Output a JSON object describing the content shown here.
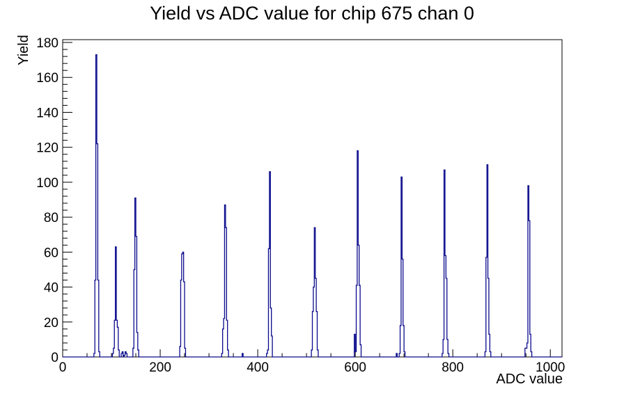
{
  "title": "Yield vs ADC value for chip 675 chan 0",
  "chart_data": {
    "type": "bar",
    "title": "Yield vs ADC value for chip 675 chan 0",
    "xlabel": "ADC value",
    "ylabel": "Yield",
    "xlim": [
      0,
      1024
    ],
    "ylim": [
      0,
      181.6
    ],
    "x_major_ticks": [
      0,
      200,
      400,
      600,
      800,
      1000
    ],
    "x_minor_step": 50,
    "y_major_ticks": [
      0,
      20,
      40,
      60,
      80,
      100,
      120,
      140,
      160,
      180
    ],
    "y_minor_step": 4,
    "bin_width": 2,
    "line_color": "#0a0a8c",
    "frame_color": "#000000",
    "background": "#ffffff",
    "grid": false,
    "legend": "none",
    "bins": [
      [
        64,
        2
      ],
      [
        66,
        44
      ],
      [
        68,
        173
      ],
      [
        70,
        122
      ],
      [
        72,
        44
      ],
      [
        74,
        3
      ],
      [
        102,
        2
      ],
      [
        104,
        5
      ],
      [
        106,
        21
      ],
      [
        108,
        63
      ],
      [
        110,
        21
      ],
      [
        112,
        17
      ],
      [
        114,
        4
      ],
      [
        120,
        2
      ],
      [
        122,
        3
      ],
      [
        126,
        1
      ],
      [
        128,
        3
      ],
      [
        130,
        2
      ],
      [
        144,
        5
      ],
      [
        146,
        50
      ],
      [
        148,
        91
      ],
      [
        150,
        69
      ],
      [
        152,
        14
      ],
      [
        154,
        4
      ],
      [
        240,
        6
      ],
      [
        242,
        44
      ],
      [
        244,
        59
      ],
      [
        246,
        60
      ],
      [
        248,
        43
      ],
      [
        250,
        5
      ],
      [
        326,
        2
      ],
      [
        328,
        16
      ],
      [
        330,
        22
      ],
      [
        332,
        87
      ],
      [
        334,
        74
      ],
      [
        336,
        21
      ],
      [
        338,
        4
      ],
      [
        368,
        2
      ],
      [
        418,
        2
      ],
      [
        420,
        4
      ],
      [
        422,
        62
      ],
      [
        424,
        106
      ],
      [
        426,
        28
      ],
      [
        428,
        12
      ],
      [
        510,
        4
      ],
      [
        512,
        26
      ],
      [
        514,
        40
      ],
      [
        516,
        74
      ],
      [
        518,
        45
      ],
      [
        520,
        26
      ],
      [
        522,
        4
      ],
      [
        598,
        13
      ],
      [
        600,
        3
      ],
      [
        602,
        41
      ],
      [
        604,
        118
      ],
      [
        606,
        64
      ],
      [
        608,
        41
      ],
      [
        610,
        7
      ],
      [
        684,
        2
      ],
      [
        690,
        2
      ],
      [
        692,
        18
      ],
      [
        694,
        103
      ],
      [
        696,
        56
      ],
      [
        698,
        18
      ],
      [
        700,
        3
      ],
      [
        778,
        2
      ],
      [
        780,
        10
      ],
      [
        782,
        107
      ],
      [
        784,
        58
      ],
      [
        786,
        45
      ],
      [
        788,
        10
      ],
      [
        790,
        2
      ],
      [
        866,
        3
      ],
      [
        868,
        57
      ],
      [
        870,
        110
      ],
      [
        872,
        45
      ],
      [
        874,
        13
      ],
      [
        876,
        3
      ],
      [
        948,
        5
      ],
      [
        950,
        5
      ],
      [
        952,
        8
      ],
      [
        954,
        98
      ],
      [
        956,
        78
      ],
      [
        958,
        13
      ],
      [
        960,
        3
      ]
    ]
  }
}
